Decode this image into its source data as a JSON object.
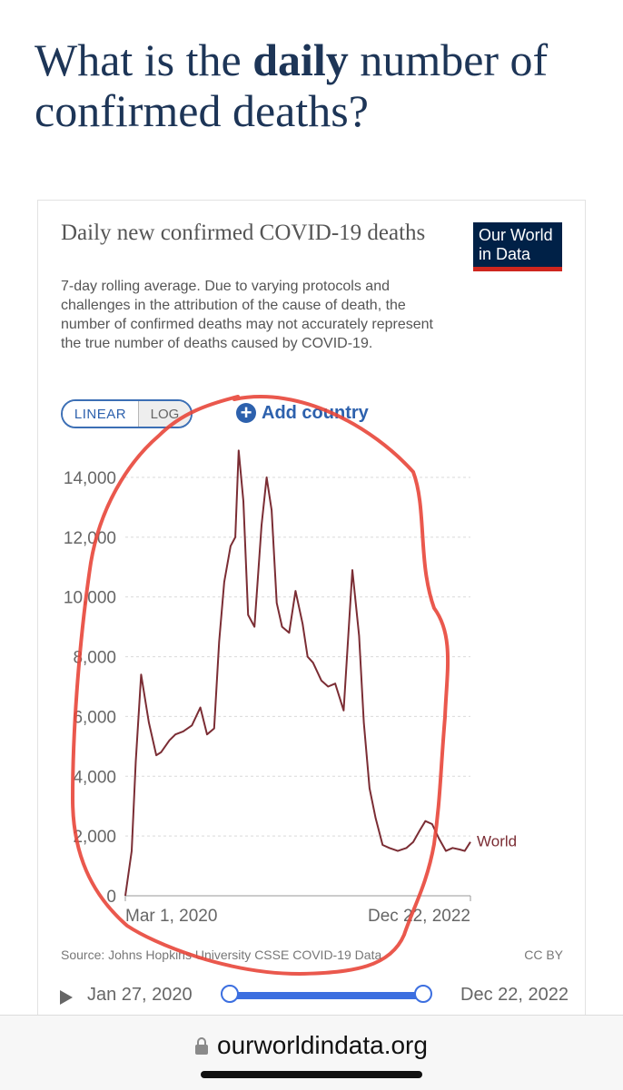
{
  "headline": {
    "before": "What is the ",
    "bold": "daily",
    "after": " number of confirmed deaths?"
  },
  "card": {
    "title": "Daily new confirmed COVID-19 deaths",
    "subtitle": "7-day rolling average. Due to varying protocols and challenges in the attribution of the cause of death, the number of confirmed deaths may not accurately represent the true number of deaths caused by COVID-19.",
    "logo": {
      "line1": "Our World",
      "line2": "in Data"
    },
    "toggle": {
      "linear": "LINEAR",
      "log": "LOG"
    },
    "add_country": "Add country",
    "source": "Source: Johns Hopkins University CSSE COVID-19 Data",
    "license": "CC BY"
  },
  "timeline": {
    "start": "Jan 27, 2020",
    "end": "Dec 22, 2022"
  },
  "browser": {
    "url": "ourworldindata.org"
  },
  "colors": {
    "series": "#7b2d34",
    "accent": "#2d61ad",
    "annotation": "#e8463a",
    "logo_bg": "#002147",
    "logo_bar": "#ce261e"
  },
  "chart_data": {
    "type": "line",
    "ylim": [
      0,
      14000
    ],
    "yticks": [
      0,
      2000,
      4000,
      6000,
      8000,
      10000,
      12000,
      14000
    ],
    "ytick_labels": [
      "0",
      "2,000",
      "4,000",
      "6,000",
      "8,000",
      "10,000",
      "12,000",
      "14,000"
    ],
    "x_start_label": "Mar 1, 2020",
    "x_end_label": "Dec 22, 2022",
    "grid": true,
    "series": [
      {
        "name": "World",
        "x": [
          "2020-03-01",
          "2020-03-20",
          "2020-04-01",
          "2020-04-17",
          "2020-05-10",
          "2020-06-01",
          "2020-06-15",
          "2020-07-10",
          "2020-07-28",
          "2020-08-20",
          "2020-09-15",
          "2020-10-10",
          "2020-10-30",
          "2020-11-20",
          "2020-12-05",
          "2020-12-20",
          "2021-01-08",
          "2021-01-22",
          "2021-02-01",
          "2021-02-15",
          "2021-03-01",
          "2021-03-20",
          "2021-04-10",
          "2021-04-25",
          "2021-05-10",
          "2021-05-25",
          "2021-06-10",
          "2021-07-01",
          "2021-07-20",
          "2021-08-10",
          "2021-08-25",
          "2021-09-10",
          "2021-10-05",
          "2021-10-25",
          "2021-11-15",
          "2021-12-10",
          "2022-01-05",
          "2022-01-25",
          "2022-02-08",
          "2022-02-25",
          "2022-03-15",
          "2022-04-05",
          "2022-04-25",
          "2022-05-20",
          "2022-06-15",
          "2022-07-05",
          "2022-07-25",
          "2022-08-10",
          "2022-08-30",
          "2022-09-20",
          "2022-10-10",
          "2022-10-30",
          "2022-11-20",
          "2022-12-05",
          "2022-12-22"
        ],
        "y": [
          0,
          1500,
          4500,
          7400,
          5800,
          4700,
          4800,
          5200,
          5400,
          5500,
          5700,
          6300,
          5400,
          5600,
          8500,
          10500,
          11700,
          12000,
          14900,
          13200,
          9400,
          9000,
          12400,
          14000,
          12900,
          9800,
          9000,
          8800,
          10200,
          9100,
          8000,
          7800,
          7200,
          7000,
          7100,
          6200,
          10900,
          8700,
          5800,
          3600,
          2600,
          1700,
          1600,
          1500,
          1600,
          1800,
          2200,
          2500,
          2400,
          1900,
          1500,
          1600,
          1550,
          1500,
          1800
        ]
      }
    ]
  }
}
